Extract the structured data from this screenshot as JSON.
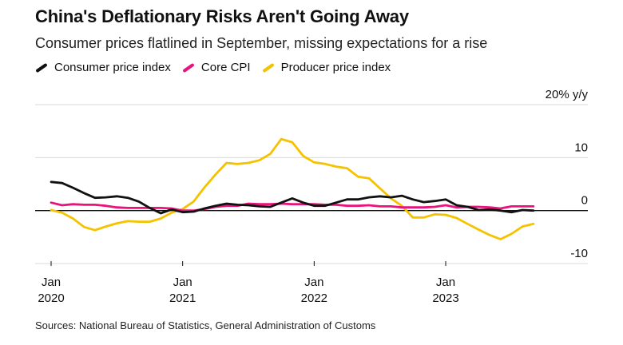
{
  "header": {
    "title": "China's Deflationary Risks Aren't Going Away",
    "subtitle": "Consumer prices flatlined in September, missing expectations for a rise"
  },
  "footer": {
    "source": "Sources: National Bureau of Statistics, General Administration of Customs"
  },
  "chart_data": {
    "type": "line",
    "title": "China's Deflationary Risks Aren't Going Away",
    "subtitle": "Consumer prices flatlined in September, missing expectations for a rise",
    "ylabel": "20% y/y",
    "ylim": [
      -10,
      20
    ],
    "yticks": [
      {
        "value": 20,
        "label": "20% y/y"
      },
      {
        "value": 10,
        "label": "10"
      },
      {
        "value": 0,
        "label": "0"
      },
      {
        "value": -10,
        "label": "-10"
      }
    ],
    "xticks": [
      {
        "index": 0,
        "month": "Jan",
        "year": "2020"
      },
      {
        "index": 12,
        "month": "Jan",
        "year": "2021"
      },
      {
        "index": 24,
        "month": "Jan",
        "year": "2022"
      },
      {
        "index": 36,
        "month": "Jan",
        "year": "2023"
      }
    ],
    "x_start": "2020-01",
    "x_end": "2023-09",
    "series": [
      {
        "name": "Consumer price index",
        "color": "#111111",
        "values": [
          5.4,
          5.2,
          4.3,
          3.3,
          2.4,
          2.5,
          2.7,
          2.4,
          1.7,
          0.5,
          -0.5,
          0.2,
          -0.3,
          -0.2,
          0.4,
          0.9,
          1.3,
          1.1,
          1.0,
          0.8,
          0.7,
          1.5,
          2.3,
          1.5,
          0.9,
          0.9,
          1.5,
          2.1,
          2.1,
          2.5,
          2.7,
          2.5,
          2.8,
          2.1,
          1.6,
          1.8,
          2.1,
          1.0,
          0.7,
          0.1,
          0.2,
          0.0,
          -0.3,
          0.1,
          0.0
        ]
      },
      {
        "name": "Core CPI",
        "color": "#e8147c",
        "values": [
          1.5,
          1.0,
          1.2,
          1.1,
          1.1,
          0.9,
          0.6,
          0.5,
          0.5,
          0.5,
          0.5,
          0.4,
          0.0,
          0.0,
          0.3,
          0.7,
          0.9,
          0.9,
          1.3,
          1.2,
          1.2,
          1.3,
          1.2,
          1.2,
          1.2,
          1.1,
          1.1,
          0.9,
          0.9,
          1.0,
          0.8,
          0.8,
          0.6,
          0.6,
          0.6,
          0.7,
          1.0,
          0.6,
          0.7,
          0.7,
          0.6,
          0.4,
          0.8,
          0.8,
          0.8
        ]
      },
      {
        "name": "Producer price index",
        "color": "#f5c200",
        "values": [
          0.1,
          -0.4,
          -1.5,
          -3.1,
          -3.7,
          -3.0,
          -2.4,
          -2.0,
          -2.1,
          -2.1,
          -1.5,
          -0.4,
          0.3,
          1.7,
          4.4,
          6.8,
          9.0,
          8.8,
          9.0,
          9.5,
          10.7,
          13.5,
          12.9,
          10.3,
          9.1,
          8.8,
          8.3,
          8.0,
          6.4,
          6.1,
          4.2,
          2.3,
          0.9,
          -1.3,
          -1.3,
          -0.7,
          -0.8,
          -1.4,
          -2.5,
          -3.6,
          -4.6,
          -5.4,
          -4.4,
          -3.0,
          -2.5
        ]
      }
    ]
  }
}
